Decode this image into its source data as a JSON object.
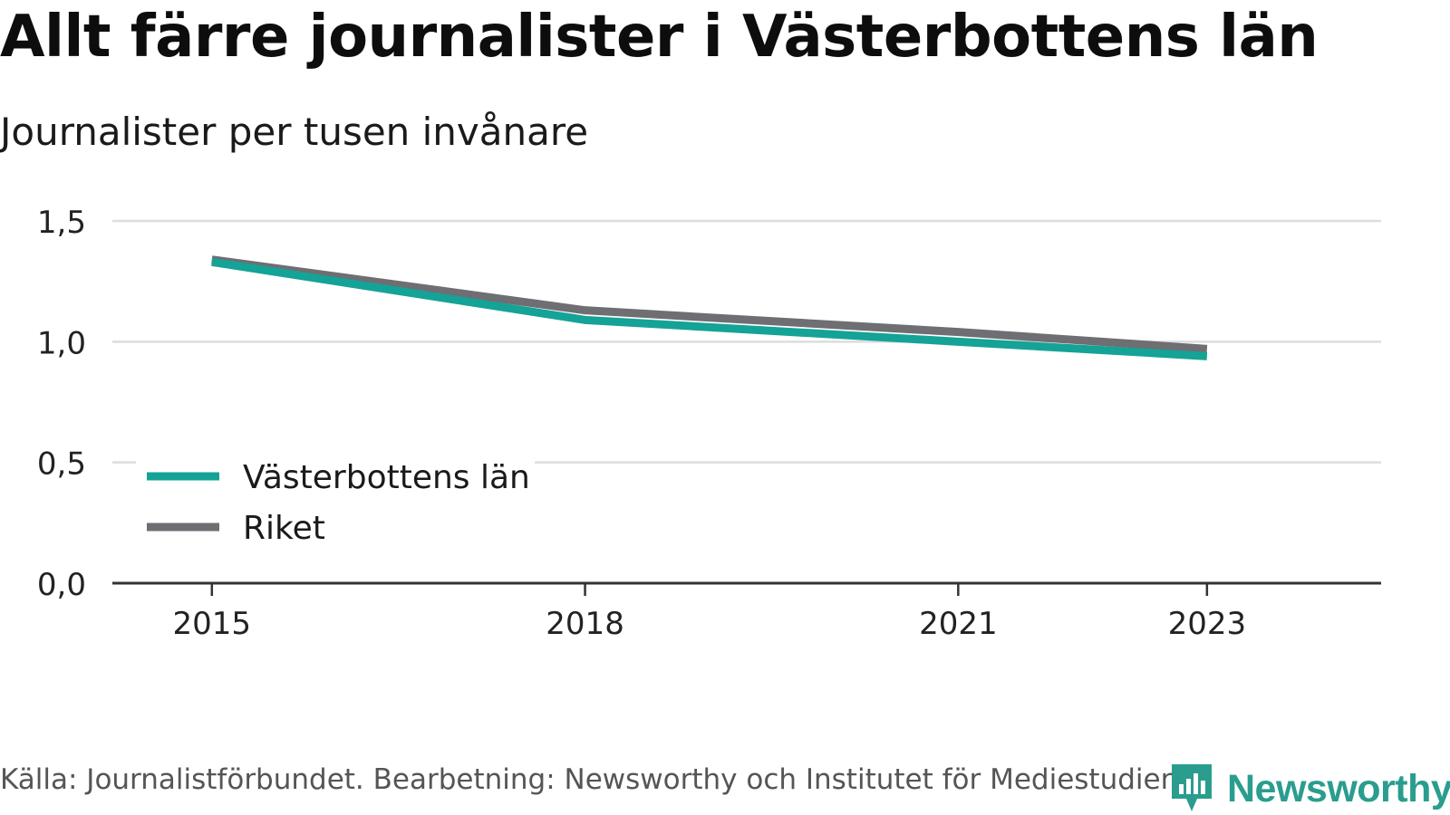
{
  "title": "Allt färre journalister i Västerbottens län",
  "subtitle": "Journalister per tusen invånare",
  "source": "Källa: Journalistförbundet. Bearbetning: Newsworthy och Institutet för Mediestudier.",
  "logo_text": "Newsworthy",
  "logo_icon": "newsworthy-logo-icon",
  "colors": {
    "vasterbotten": "#14a396",
    "riket": "#6e6e73",
    "grid": "#dddddd",
    "axis": "#333333",
    "logo": "#2a9d8f"
  },
  "chart_data": {
    "type": "line",
    "x": [
      2015,
      2018,
      2021,
      2023
    ],
    "x_tick_labels": [
      "2015",
      "2018",
      "2021",
      "2023"
    ],
    "y_ticks": [
      0,
      0.5,
      1.0,
      1.5
    ],
    "y_tick_labels": [
      "0,0",
      "0,5",
      "1,0",
      "1,5"
    ],
    "ylim": [
      0,
      1.5
    ],
    "grid": true,
    "legend_position": "left",
    "series": [
      {
        "name": "Västerbottens län",
        "values": [
          1.33,
          1.09,
          1.0,
          0.94
        ],
        "color": "#14a396"
      },
      {
        "name": "Riket",
        "values": [
          1.34,
          1.13,
          1.04,
          0.97
        ],
        "color": "#6e6e73"
      }
    ]
  }
}
